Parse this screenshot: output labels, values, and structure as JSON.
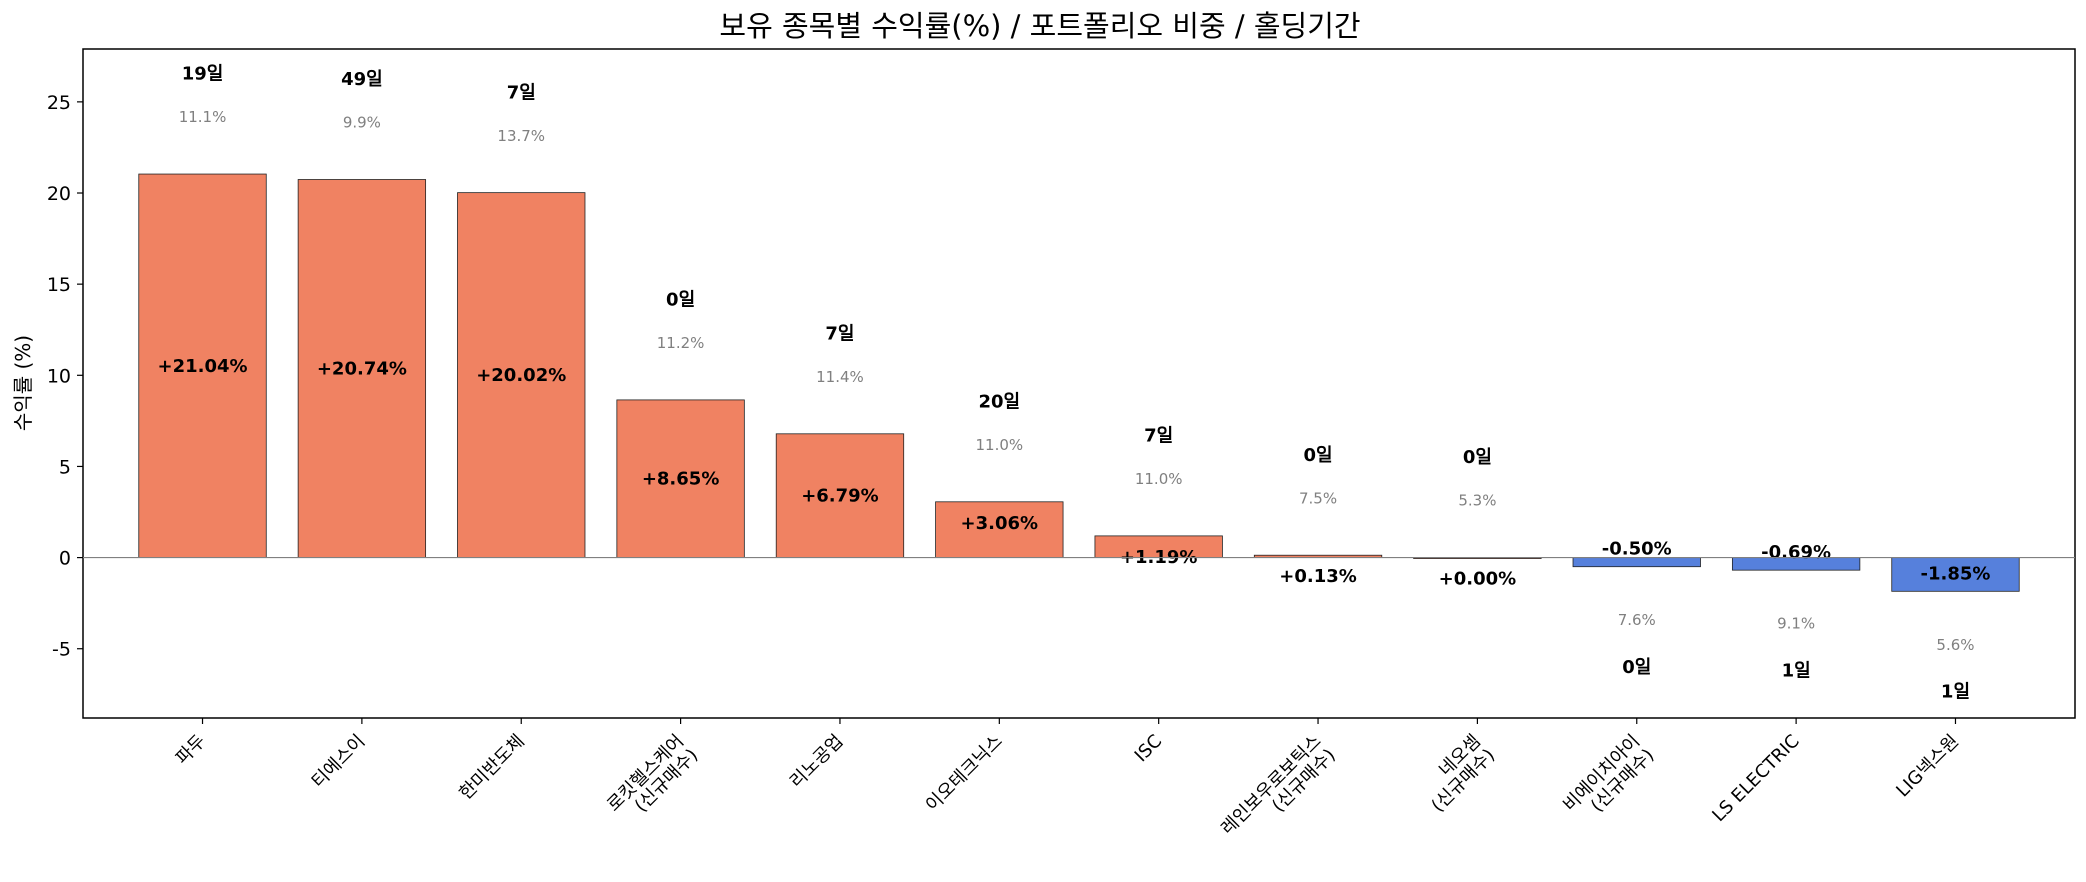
{
  "colors": {
    "positive": "#F08262",
    "negative": "#5680DC",
    "edge": "#222222",
    "zero_line": "#808080",
    "weight_text": "#808080"
  },
  "chart_data": {
    "type": "bar",
    "title": "보유 종목별 수익률(%) / 포트폴리오 비중 / 홀딩기간",
    "ylabel": "수익률 (%)",
    "xlabel": "",
    "ylim": [
      -8.8,
      27.9
    ],
    "yticks": [
      -5,
      0,
      5,
      10,
      15,
      20,
      25
    ],
    "grid": false,
    "categories": [
      [
        "파두"
      ],
      [
        "티에스이"
      ],
      [
        "한미반도체"
      ],
      [
        "로킷헬스케어",
        "(신규매수)"
      ],
      [
        "리노공업"
      ],
      [
        "이오테크닉스"
      ],
      [
        "ISC"
      ],
      [
        "레인보우로보틱스",
        "(신규매수)"
      ],
      [
        "네오셈",
        "(신규매수)"
      ],
      [
        "비에이치아이",
        "(신규매수)"
      ],
      [
        "LS ELECTRIC"
      ],
      [
        "LIG넥스원"
      ]
    ],
    "values": [
      21.04,
      20.74,
      20.02,
      8.65,
      6.79,
      3.06,
      1.19,
      0.13,
      0.0,
      -0.5,
      -0.69,
      -1.85
    ],
    "value_labels": [
      "+21.04%",
      "+20.74%",
      "+20.02%",
      "+8.65%",
      "+6.79%",
      "+3.06%",
      "+1.19%",
      "+0.13%",
      "+0.00%",
      "-0.50%",
      "-0.69%",
      "-1.85%"
    ],
    "weights": [
      "11.1%",
      "9.9%",
      "13.7%",
      "11.2%",
      "11.4%",
      "11.0%",
      "11.0%",
      "7.5%",
      "5.3%",
      "7.6%",
      "9.1%",
      "5.6%"
    ],
    "holding_days": [
      "19일",
      "49일",
      "7일",
      "0일",
      "7일",
      "20일",
      "7일",
      "0일",
      "0일",
      "0일",
      "1일",
      "1일"
    ]
  }
}
